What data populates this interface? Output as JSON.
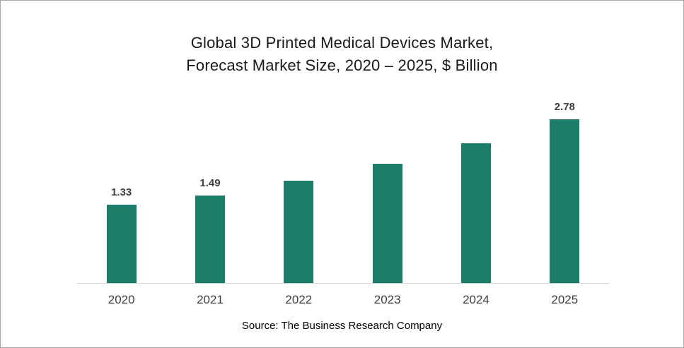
{
  "header": {
    "line1": "Global 3D Printed Medical Devices Market,",
    "line2": "Forecast Market Size, 2020 – 2025, $ Billion"
  },
  "source": "Source: The Business Research Company",
  "colors": {
    "bar": "#1E7C6B",
    "axis": "#D6D6D6",
    "data_label": "#404040"
  },
  "chart_data": {
    "type": "bar",
    "title": "Global 3D Printed Medical Devices Market, Forecast Market Size, 2020 – 2025, $ Billion",
    "categories": [
      "2020",
      "2021",
      "2022",
      "2023",
      "2024",
      "2025"
    ],
    "values": [
      1.33,
      1.49,
      1.74,
      2.03,
      2.38,
      2.78
    ],
    "data_labels": [
      "1.33",
      "1.49",
      "",
      "",
      "",
      "2.78"
    ],
    "xlabel": "",
    "ylabel": "$ Billion",
    "ylim": [
      0,
      3.35
    ],
    "grid": false,
    "legend": false,
    "axis_line": "bottom only"
  }
}
